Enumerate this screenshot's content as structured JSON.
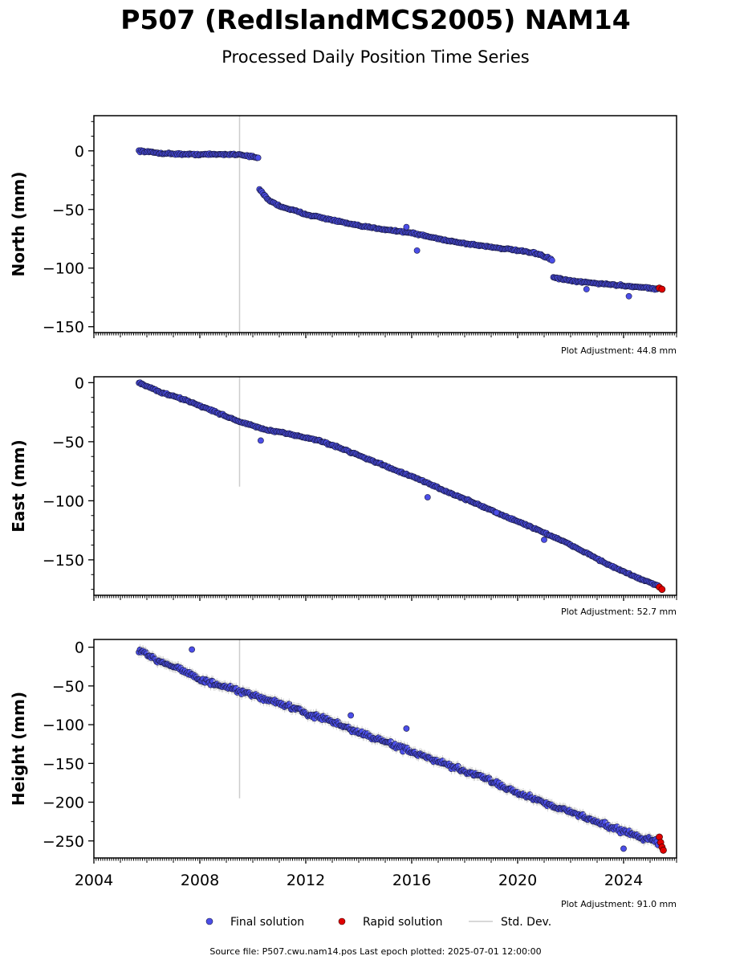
{
  "header": {
    "title": "P507 (RedIslandMCS2005) NAM14",
    "subtitle": "Processed Daily Position Time Series"
  },
  "legend": {
    "final_label": "Final solution",
    "rapid_label": "Rapid solution",
    "std_label": "Std. Dev."
  },
  "footer": {
    "text": "Source file: P507.cwu.nam14.pos  Last epoch plotted: 2025-07-01 12:00:00"
  },
  "colors": {
    "final": "#4b4ee8",
    "final_edge": "#1a1a40",
    "rapid": "#e00000",
    "std_dev": "#cccccc",
    "axis": "#000000"
  },
  "chart_data": [
    {
      "type": "scatter",
      "ylabel": "North (mm)",
      "adjustment": "Plot Adjustment: 44.8 mm",
      "xlim": [
        2004,
        2026
      ],
      "ylim": [
        -155,
        30
      ],
      "xticks": [
        2004,
        2008,
        2012,
        2016,
        2020,
        2024
      ],
      "xtick_labels_visible": false,
      "yticks": [
        0,
        -50,
        -100,
        -150
      ],
      "ytick_labels": [
        "0",
        "−50",
        "−100",
        "−150"
      ],
      "series": [
        {
          "name": "Final solution",
          "kind": "final",
          "segments": [
            {
              "x": [
                2005.7,
                2006.5,
                2007.5,
                2008.5,
                2009.5,
                2010.2
              ],
              "y": [
                0,
                -2,
                -3,
                -3,
                -3,
                -6
              ]
            },
            {
              "x": [
                2010.25,
                2010.6,
                2011.0,
                2012.0,
                2013.0,
                2014.0,
                2015.0,
                2016.0,
                2017.0,
                2018.0,
                2019.0,
                2020.0,
                2020.8,
                2021.3
              ],
              "y": [
                -33,
                -42,
                -47,
                -54,
                -59,
                -64,
                -67,
                -70,
                -75,
                -79,
                -82,
                -85,
                -88,
                -93
              ]
            },
            {
              "x": [
                2021.35,
                2022.0,
                2023.0,
                2024.0,
                2025.0,
                2025.3
              ],
              "y": [
                -108,
                -111,
                -113,
                -115,
                -117,
                -118
              ]
            }
          ],
          "outliers": [
            {
              "x": 2015.8,
              "y": -65
            },
            {
              "x": 2016.2,
              "y": -85
            },
            {
              "x": 2024.2,
              "y": -124
            },
            {
              "x": 2022.6,
              "y": -118
            }
          ]
        },
        {
          "name": "Rapid solution",
          "kind": "rapid",
          "x": [
            2025.35,
            2025.45
          ],
          "y": [
            -117,
            -118
          ]
        }
      ],
      "std_dev_spikes": [
        {
          "x": 2009.5,
          "ylow": -155,
          "yhigh": 30
        }
      ]
    },
    {
      "type": "scatter",
      "ylabel": "East (mm)",
      "adjustment": "Plot Adjustment: 52.7 mm",
      "xlim": [
        2004,
        2026
      ],
      "ylim": [
        -180,
        5
      ],
      "xticks": [
        2004,
        2008,
        2012,
        2016,
        2020,
        2024
      ],
      "xtick_labels_visible": false,
      "yticks": [
        0,
        -50,
        -100,
        -150
      ],
      "ytick_labels": [
        "0",
        "−50",
        "−100",
        "−150"
      ],
      "series": [
        {
          "name": "Final solution",
          "kind": "final",
          "segments": [
            {
              "x": [
                2005.7,
                2006.5,
                2007.5,
                2008.5,
                2009.5,
                2010.5,
                2011.5,
                2012.5,
                2013.5,
                2014.5,
                2015.5,
                2016.5,
                2017.5,
                2018.5,
                2019.5,
                2020.5,
                2021.5,
                2022.5,
                2023.5,
                2024.5,
                2025.3
              ],
              "y": [
                0,
                -8,
                -15,
                -24,
                -33,
                -40,
                -44,
                -49,
                -57,
                -66,
                -75,
                -84,
                -94,
                -103,
                -113,
                -122,
                -132,
                -143,
                -155,
                -165,
                -172
              ]
            }
          ],
          "outliers": [
            {
              "x": 2010.3,
              "y": -49
            },
            {
              "x": 2016.6,
              "y": -97
            },
            {
              "x": 2021.0,
              "y": -133
            },
            {
              "x": 2019.2,
              "y": -110
            }
          ]
        },
        {
          "name": "Rapid solution",
          "kind": "rapid",
          "x": [
            2025.35,
            2025.45
          ],
          "y": [
            -173,
            -175
          ]
        }
      ],
      "std_dev_spikes": [
        {
          "x": 2009.5,
          "ylow": -88,
          "yhigh": 5
        }
      ]
    },
    {
      "type": "scatter",
      "ylabel": "Height (mm)",
      "adjustment": "Plot Adjustment: 91.0 mm",
      "xlim": [
        2004,
        2026
      ],
      "ylim": [
        -272,
        10
      ],
      "xticks": [
        2004,
        2008,
        2012,
        2016,
        2020,
        2024
      ],
      "xtick_labels": [
        "2004",
        "2008",
        "2012",
        "2016",
        "2020",
        "2024"
      ],
      "xtick_labels_visible": true,
      "yticks": [
        0,
        -50,
        -100,
        -150,
        -200,
        -250
      ],
      "ytick_labels": [
        "0",
        "−50",
        "−100",
        "−150",
        "−200",
        "−250"
      ],
      "series": [
        {
          "name": "Final solution",
          "kind": "final",
          "segments": [
            {
              "x": [
                2005.7,
                2006.5,
                2007.3,
                2008.0,
                2009.0,
                2010.0,
                2011.0,
                2012.0,
                2013.0,
                2014.0,
                2015.0,
                2016.0,
                2017.0,
                2018.0,
                2019.0,
                2020.0,
                2021.0,
                2022.0,
                2023.0,
                2024.0,
                2025.3
              ],
              "y": [
                -5,
                -18,
                -28,
                -42,
                -52,
                -62,
                -72,
                -85,
                -96,
                -110,
                -122,
                -135,
                -148,
                -160,
                -172,
                -188,
                -200,
                -213,
                -225,
                -238,
                -252
              ]
            }
          ],
          "outliers": [
            {
              "x": 2007.7,
              "y": -3
            },
            {
              "x": 2015.8,
              "y": -105
            },
            {
              "x": 2024.0,
              "y": -260
            },
            {
              "x": 2013.7,
              "y": -88
            }
          ]
        },
        {
          "name": "Rapid solution",
          "kind": "rapid",
          "x": [
            2025.35,
            2025.4,
            2025.45,
            2025.5
          ],
          "y": [
            -245,
            -252,
            -258,
            -262
          ]
        }
      ],
      "std_dev_spikes": [
        {
          "x": 2009.5,
          "ylow": -195,
          "yhigh": 10
        }
      ]
    }
  ]
}
